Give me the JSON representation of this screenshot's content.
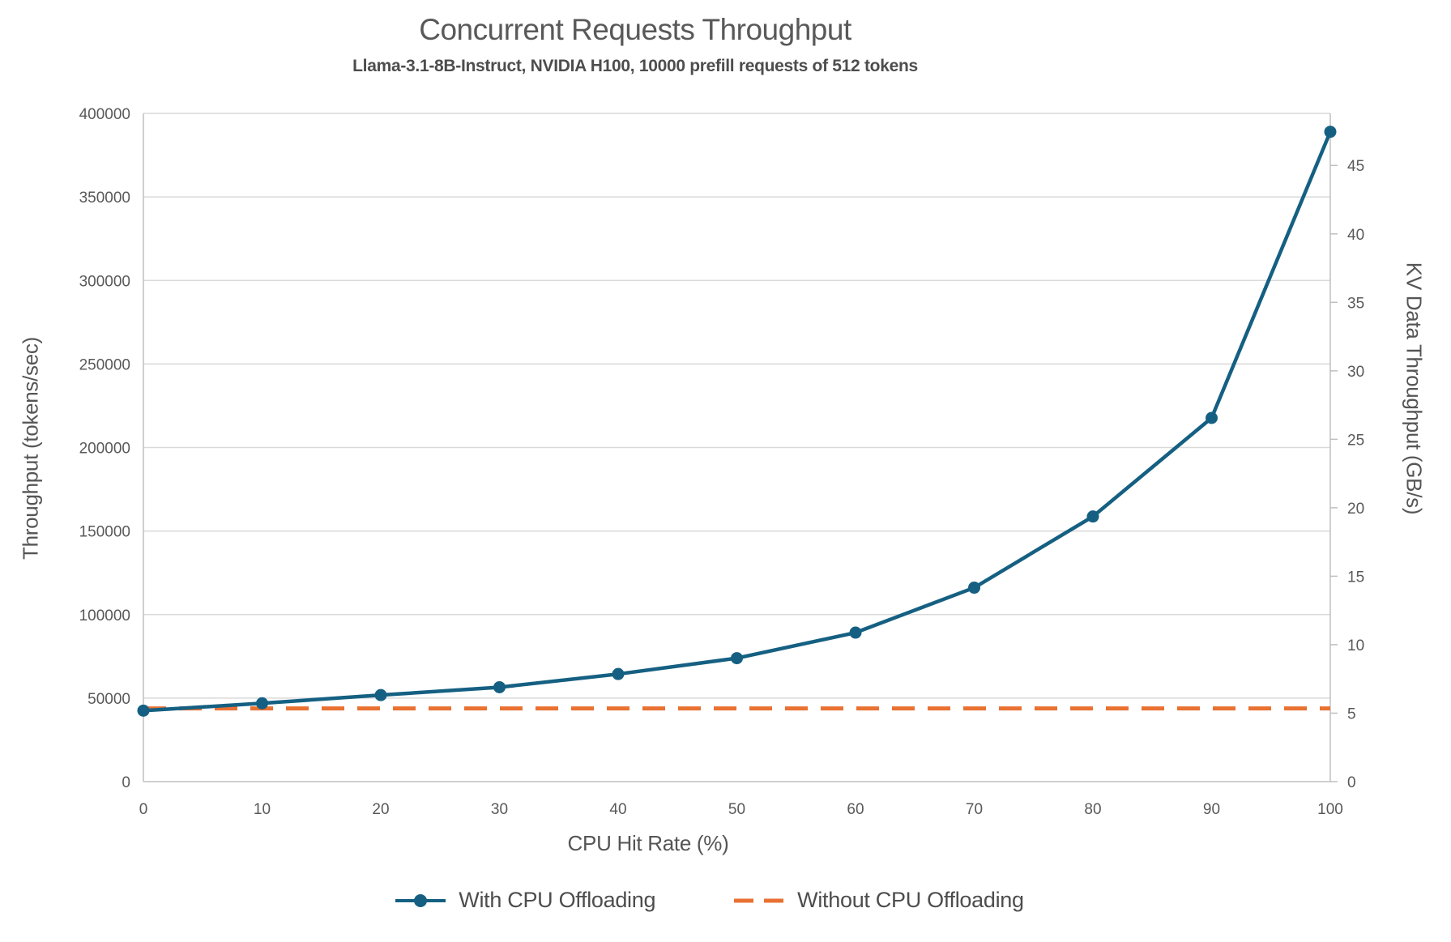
{
  "header": {
    "title": "Concurrent Requests Throughput",
    "subtitle": "Llama-3.1-8B-Instruct, NVIDIA H100, 10000 prefill requests of 512 tokens"
  },
  "chart_data": {
    "type": "line",
    "title": "Concurrent Requests Throughput",
    "subtitle": "Llama-3.1-8B-Instruct, NVIDIA H100, 10000 prefill requests of 512 tokens",
    "xlabel": "CPU Hit Rate (%)",
    "ylabel_left": "Throughput (tokens/sec)",
    "ylabel_right": "KV Data Throughput (GB/s)",
    "x": [
      0,
      10,
      20,
      30,
      40,
      50,
      60,
      70,
      80,
      90,
      100
    ],
    "x_ticks": [
      0,
      10,
      20,
      30,
      40,
      50,
      60,
      70,
      80,
      90,
      100
    ],
    "xlim": [
      0,
      100
    ],
    "ylim_left": [
      0,
      400000
    ],
    "y_ticks_left": [
      0,
      50000,
      100000,
      150000,
      200000,
      250000,
      300000,
      350000,
      400000
    ],
    "ylim_right": [
      0,
      48.8
    ],
    "y_ticks_right": [
      0,
      5,
      10,
      15,
      20,
      25,
      30,
      35,
      40,
      45
    ],
    "grid": "horizontal",
    "legend_position": "bottom",
    "series": [
      {
        "name": "With CPU Offloading",
        "style": "solid-line-with-markers",
        "color": "#156082",
        "values": [
          42500,
          46900,
          51800,
          56500,
          64400,
          73900,
          89200,
          116100,
          158700,
          217700,
          389000
        ]
      },
      {
        "name": "Without CPU Offloading",
        "style": "dashed-line",
        "color": "#E97132",
        "values": [
          43800,
          43800,
          43800,
          43800,
          43800,
          43800,
          43800,
          43800,
          43800,
          43800,
          43800
        ]
      }
    ],
    "colors": {
      "gridline": "#d9d9d9",
      "axis_line": "#bfbfbf",
      "tick_text": "#595959"
    }
  }
}
